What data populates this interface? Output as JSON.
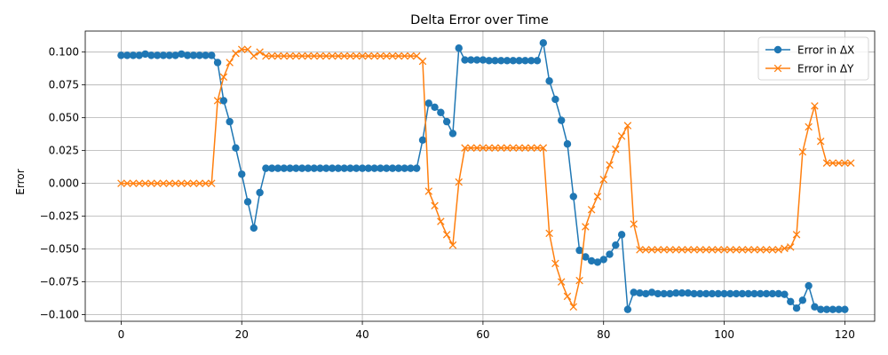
{
  "chart_data": {
    "type": "line",
    "title": "Delta Error over Time",
    "xlabel": "",
    "ylabel": "Error",
    "xlim": [
      -5.95,
      124.95
    ],
    "ylim": [
      -0.105,
      0.116
    ],
    "xticks": [
      0,
      20,
      40,
      60,
      80,
      100,
      120
    ],
    "xtick_labels": [
      "0",
      "20",
      "40",
      "60",
      "80",
      "100",
      "120"
    ],
    "yticks": [
      -0.1,
      -0.075,
      -0.05,
      -0.025,
      0.0,
      0.025,
      0.05,
      0.075,
      0.1
    ],
    "ytick_labels": [
      "−0.100",
      "−0.075",
      "−0.050",
      "−0.025",
      "0.000",
      "0.025",
      "0.050",
      "0.075",
      "0.100"
    ],
    "grid": true,
    "legend_position": "top-right",
    "series": [
      {
        "name": "Error in ΔX",
        "color": "#1f77b4",
        "marker": "circle",
        "values": [
          0.0975,
          0.0975,
          0.0975,
          0.0975,
          0.0985,
          0.0975,
          0.0975,
          0.0975,
          0.0975,
          0.0975,
          0.0985,
          0.0975,
          0.0975,
          0.0975,
          0.0975,
          0.0975,
          0.092,
          0.063,
          0.047,
          0.027,
          0.007,
          -0.014,
          -0.034,
          -0.007,
          0.0115,
          0.0115,
          0.0115,
          0.0115,
          0.0115,
          0.0115,
          0.0115,
          0.0115,
          0.0115,
          0.0115,
          0.0115,
          0.0115,
          0.0115,
          0.0115,
          0.0115,
          0.0115,
          0.0115,
          0.0115,
          0.0115,
          0.0115,
          0.0115,
          0.0115,
          0.0115,
          0.0115,
          0.0115,
          0.0115,
          0.033,
          0.061,
          0.058,
          0.054,
          0.047,
          0.038,
          0.103,
          0.094,
          0.094,
          0.094,
          0.094,
          0.0935,
          0.0935,
          0.0935,
          0.0935,
          0.0935,
          0.0935,
          0.0935,
          0.0935,
          0.0935,
          0.107,
          0.078,
          0.064,
          0.048,
          0.03,
          -0.01,
          -0.051,
          -0.056,
          -0.059,
          -0.06,
          -0.058,
          -0.054,
          -0.047,
          -0.039,
          -0.096,
          -0.083,
          -0.0835,
          -0.084,
          -0.083,
          -0.084,
          -0.084,
          -0.084,
          -0.0835,
          -0.0835,
          -0.0835,
          -0.084,
          -0.084,
          -0.084,
          -0.084,
          -0.084,
          -0.084,
          -0.084,
          -0.084,
          -0.084,
          -0.084,
          -0.084,
          -0.084,
          -0.084,
          -0.084,
          -0.084,
          -0.0845,
          -0.09,
          -0.095,
          -0.089,
          -0.078,
          -0.094,
          -0.096,
          -0.096,
          -0.096,
          -0.096,
          -0.096
        ]
      },
      {
        "name": "Error in ΔY",
        "color": "#ff7f0e",
        "marker": "x",
        "values": [
          0.0,
          0.0,
          0.0,
          0.0,
          0.0,
          0.0,
          0.0,
          0.0,
          0.0,
          0.0,
          0.0,
          0.0,
          0.0,
          0.0,
          0.0,
          0.0,
          0.063,
          0.081,
          0.092,
          0.099,
          0.102,
          0.102,
          0.097,
          0.1,
          0.097,
          0.097,
          0.097,
          0.097,
          0.097,
          0.097,
          0.097,
          0.097,
          0.097,
          0.097,
          0.097,
          0.097,
          0.097,
          0.097,
          0.097,
          0.097,
          0.097,
          0.097,
          0.097,
          0.097,
          0.097,
          0.097,
          0.097,
          0.097,
          0.097,
          0.097,
          0.093,
          -0.006,
          -0.017,
          -0.029,
          -0.039,
          -0.047,
          0.001,
          0.027,
          0.027,
          0.027,
          0.027,
          0.027,
          0.027,
          0.027,
          0.027,
          0.027,
          0.027,
          0.027,
          0.027,
          0.027,
          0.027,
          -0.038,
          -0.061,
          -0.075,
          -0.086,
          -0.094,
          -0.074,
          -0.033,
          -0.02,
          -0.01,
          0.003,
          0.014,
          0.026,
          0.036,
          0.044,
          -0.031,
          -0.0505,
          -0.0505,
          -0.0505,
          -0.0505,
          -0.0505,
          -0.0505,
          -0.0505,
          -0.0505,
          -0.0505,
          -0.0505,
          -0.0505,
          -0.0505,
          -0.0505,
          -0.0505,
          -0.0505,
          -0.0505,
          -0.0505,
          -0.0505,
          -0.0505,
          -0.0505,
          -0.0505,
          -0.0505,
          -0.0505,
          -0.0505,
          -0.0495,
          -0.0485,
          -0.039,
          0.024,
          0.043,
          0.059,
          0.032,
          0.0155,
          0.0155,
          0.0155,
          0.0155,
          0.0155
        ]
      }
    ]
  }
}
